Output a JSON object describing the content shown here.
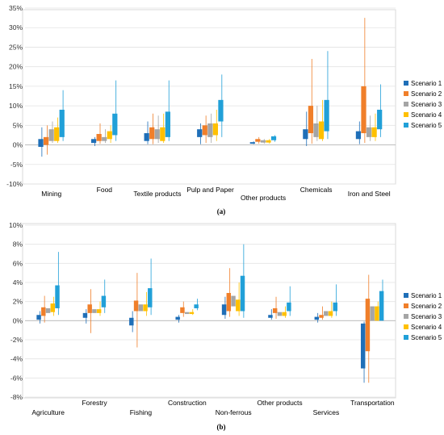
{
  "colors": {
    "Scenario 1": "#1f6fb8",
    "Scenario 2": "#f07f2a",
    "Scenario 3": "#a5a5a5",
    "Scenario 4": "#ffc000",
    "Scenario 5": "#21a0d8"
  },
  "chart_data": [
    {
      "type": "bar",
      "panel_label": "(a)",
      "categories": [
        "Mining",
        "Food",
        "Textile products",
        "Pulp and Paper",
        "Other products",
        "Chemicals",
        "Iron and Steel"
      ],
      "y_ticks": [
        "-10%",
        "-5%",
        "0%",
        "5%",
        "10%",
        "15%",
        "20%",
        "25%",
        "30%",
        "35%"
      ],
      "ylim": [
        -10,
        35
      ],
      "legend": [
        "Scenario 1",
        "Scenario 2",
        "Scenario 3",
        "Scenario 4",
        "Scenario 5"
      ],
      "legend_position": "right",
      "series": [
        {
          "name": "Scenario 1",
          "low": [
            -0.5,
            0.5,
            1.0,
            2.0,
            0.3,
            1.5,
            1.5
          ],
          "high": [
            1.5,
            1.5,
            3.0,
            4.0,
            0.7,
            4.0,
            3.5
          ],
          "wlow": [
            -3.0,
            -0.3,
            0.2,
            0.2,
            0.2,
            -0.3,
            0.2
          ],
          "whigh": [
            4.5,
            2.0,
            6.0,
            5.5,
            0.9,
            8.5,
            6.0
          ]
        },
        {
          "name": "Scenario 2",
          "low": [
            0.0,
            1.0,
            1.5,
            2.5,
            0.8,
            3.0,
            3.0
          ],
          "high": [
            2.0,
            2.8,
            4.5,
            5.0,
            1.5,
            10.0,
            15.0
          ],
          "wlow": [
            -2.5,
            0.3,
            0.2,
            0.5,
            0.3,
            0.3,
            0.5
          ],
          "whigh": [
            5.0,
            5.5,
            8.0,
            7.5,
            2.0,
            22.0,
            32.5
          ]
        },
        {
          "name": "Scenario 3",
          "low": [
            1.0,
            1.0,
            1.5,
            2.0,
            0.6,
            2.0,
            2.0
          ],
          "high": [
            4.0,
            2.0,
            4.0,
            5.5,
            1.2,
            5.5,
            4.5
          ],
          "wlow": [
            0.5,
            0.5,
            0.5,
            0.5,
            0.3,
            1.0,
            1.0
          ],
          "whigh": [
            6.0,
            4.0,
            7.5,
            8.0,
            1.5,
            10.0,
            7.5
          ]
        },
        {
          "name": "Scenario 4",
          "low": [
            1.0,
            1.5,
            1.0,
            2.5,
            0.6,
            1.5,
            2.0
          ],
          "high": [
            4.5,
            3.5,
            4.5,
            5.5,
            1.2,
            6.0,
            4.5
          ],
          "wlow": [
            0.5,
            0.5,
            0.5,
            1.0,
            0.3,
            1.0,
            1.0
          ],
          "whigh": [
            7.0,
            5.0,
            8.0,
            9.0,
            1.5,
            11.5,
            8.0
          ]
        },
        {
          "name": "Scenario 5",
          "low": [
            2.0,
            2.5,
            2.0,
            6.0,
            1.2,
            3.5,
            4.0
          ],
          "high": [
            9.0,
            8.0,
            8.5,
            11.5,
            2.2,
            11.5,
            9.0
          ],
          "wlow": [
            1.0,
            1.0,
            1.0,
            2.0,
            0.8,
            1.5,
            2.0
          ],
          "whigh": [
            14.0,
            16.5,
            16.5,
            18.0,
            2.5,
            24.0,
            15.5
          ]
        }
      ]
    },
    {
      "type": "bar",
      "panel_label": "(b)",
      "categories": [
        "Agriculture",
        "Forestry",
        "Fishing",
        "Construction",
        "Non-ferrous",
        "Other products",
        "Services",
        "Transportation"
      ],
      "y_ticks": [
        "-8%",
        "-6%",
        "-4%",
        "-2%",
        "0%",
        "2%",
        "4%",
        "6%",
        "8%",
        "10%"
      ],
      "ylim": [
        -8,
        10
      ],
      "legend": [
        "Scenario 1",
        "Scenario 2",
        "Scenario 3",
        "Scenario 4",
        "Scenario 5"
      ],
      "legend_position": "right",
      "series": [
        {
          "name": "Scenario 1",
          "low": [
            0.1,
            0.3,
            -0.5,
            0.1,
            0.6,
            0.3,
            0.1,
            -5.0
          ],
          "high": [
            0.6,
            0.8,
            0.3,
            0.4,
            1.7,
            0.6,
            0.4,
            -0.3
          ],
          "wlow": [
            -0.3,
            -0.3,
            -1.2,
            -0.2,
            0.2,
            0.1,
            -0.2,
            -6.5
          ],
          "whigh": [
            1.0,
            1.2,
            1.0,
            0.6,
            2.5,
            1.2,
            0.8,
            -0.1
          ]
        },
        {
          "name": "Scenario 2",
          "low": [
            0.5,
            0.8,
            1.0,
            0.8,
            1.0,
            0.8,
            0.3,
            -3.2
          ],
          "high": [
            1.4,
            1.7,
            2.1,
            1.4,
            2.9,
            1.3,
            0.6,
            2.3
          ],
          "wlow": [
            -0.2,
            -1.3,
            -2.8,
            0.4,
            0.4,
            0.2,
            0.1,
            -6.5
          ],
          "whigh": [
            2.6,
            3.3,
            5.0,
            2.0,
            5.5,
            2.5,
            1.5,
            4.8
          ]
        },
        {
          "name": "Scenario 3",
          "low": [
            0.8,
            0.8,
            1.0,
            0.7,
            1.5,
            0.5,
            0.5,
            0.0
          ],
          "high": [
            1.3,
            1.2,
            1.7,
            0.9,
            2.6,
            0.9,
            1.0,
            1.5
          ]
        },
        {
          "name": "Scenario 4",
          "low": [
            0.9,
            0.8,
            1.0,
            0.7,
            1.0,
            0.5,
            0.5,
            0.0
          ],
          "high": [
            1.8,
            1.2,
            1.7,
            0.9,
            2.2,
            0.9,
            1.0,
            1.5
          ],
          "wlow": [
            0.5,
            0.5,
            0.5,
            0.6,
            0.5,
            0.3,
            0.3,
            0.0
          ],
          "whigh": [
            2.5,
            2.0,
            3.0,
            1.2,
            4.0,
            1.5,
            2.0,
            2.0
          ]
        },
        {
          "name": "Scenario 5",
          "low": [
            1.3,
            1.4,
            1.4,
            1.3,
            1.0,
            1.0,
            1.0,
            0.0
          ],
          "high": [
            3.7,
            2.6,
            3.4,
            1.7,
            4.7,
            1.9,
            1.9,
            3.1
          ],
          "wlow": [
            0.6,
            0.8,
            0.6,
            1.1,
            0.3,
            0.5,
            0.5,
            0.0
          ],
          "whigh": [
            7.2,
            4.3,
            6.5,
            2.3,
            8.0,
            3.6,
            3.8,
            4.3
          ]
        }
      ]
    }
  ]
}
